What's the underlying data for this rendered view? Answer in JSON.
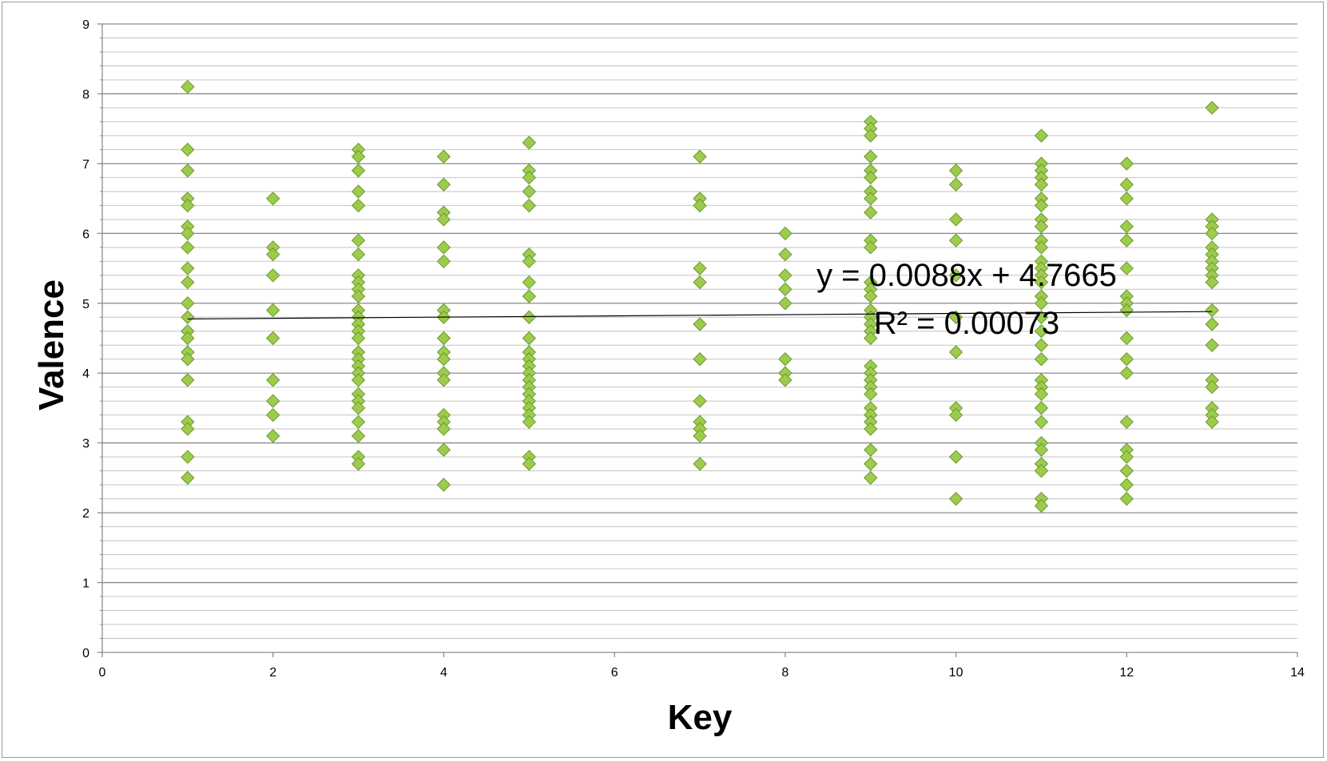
{
  "chart_data": {
    "type": "scatter",
    "title": "",
    "xlabel": "Key",
    "ylabel": "Valence",
    "xlim": [
      0,
      14
    ],
    "ylim": [
      0,
      9
    ],
    "xticks": [
      "0",
      "2",
      "4",
      "6",
      "8",
      "10",
      "12",
      "14"
    ],
    "yticks": [
      "0",
      "1",
      "2",
      "3",
      "4",
      "5",
      "6",
      "7",
      "8",
      "9"
    ],
    "grid": {
      "major_y": true,
      "minor_y": true,
      "x": false
    },
    "marker": {
      "shape": "diamond",
      "fill": "#9CCB4E",
      "edge": "#6E9A2C"
    },
    "trendline": {
      "type": "linear",
      "slope": 0.0088,
      "intercept": 4.7665,
      "x_range": [
        1,
        13
      ],
      "equation": "y = 0.0088x + 4.7665",
      "r_squared": "R² = 0.00073",
      "color": "#000000"
    },
    "series": [
      {
        "values": [
          {
            "x": 1,
            "y": [
              8.1,
              7.2,
              6.9,
              6.5,
              6.4,
              6.1,
              6.0,
              5.8,
              5.5,
              5.3,
              5.0,
              4.8,
              4.6,
              4.5,
              4.3,
              4.2,
              3.9,
              3.3,
              3.2,
              2.8,
              2.5
            ]
          },
          {
            "x": 2,
            "y": [
              6.5,
              5.8,
              5.7,
              5.4,
              4.9,
              4.5,
              3.9,
              3.6,
              3.4,
              3.1
            ]
          },
          {
            "x": 3,
            "y": [
              7.2,
              7.1,
              6.9,
              6.6,
              6.4,
              5.9,
              5.7,
              5.4,
              5.3,
              5.2,
              5.1,
              4.9,
              4.8,
              4.7,
              4.6,
              4.5,
              4.3,
              4.2,
              4.1,
              4.0,
              3.9,
              3.7,
              3.6,
              3.5,
              3.3,
              3.1,
              2.8,
              2.7
            ]
          },
          {
            "x": 4,
            "y": [
              7.1,
              6.7,
              6.3,
              6.2,
              5.8,
              5.6,
              4.9,
              4.8,
              4.5,
              4.3,
              4.2,
              4.0,
              3.9,
              3.4,
              3.3,
              3.2,
              2.9,
              2.4
            ]
          },
          {
            "x": 5,
            "y": [
              7.3,
              6.9,
              6.8,
              6.6,
              6.4,
              5.7,
              5.6,
              5.3,
              5.1,
              4.8,
              4.5,
              4.3,
              4.2,
              4.1,
              4.0,
              3.9,
              3.8,
              3.7,
              3.6,
              3.5,
              3.4,
              3.3,
              2.8,
              2.7
            ]
          },
          {
            "x": 7,
            "y": [
              7.1,
              6.5,
              6.4,
              5.5,
              5.3,
              4.7,
              4.2,
              3.6,
              3.3,
              3.2,
              3.1,
              2.7
            ]
          },
          {
            "x": 8,
            "y": [
              6.0,
              5.7,
              5.4,
              5.2,
              5.0,
              4.2,
              4.0,
              3.9
            ]
          },
          {
            "x": 9,
            "y": [
              7.6,
              7.5,
              7.4,
              7.1,
              6.9,
              6.8,
              6.6,
              6.5,
              6.3,
              5.9,
              5.8,
              5.3,
              5.2,
              5.1,
              4.9,
              4.8,
              4.7,
              4.6,
              4.5,
              4.1,
              4.0,
              3.9,
              3.8,
              3.7,
              3.5,
              3.4,
              3.3,
              3.2,
              2.9,
              2.7,
              2.5
            ]
          },
          {
            "x": 10,
            "y": [
              6.9,
              6.7,
              6.2,
              5.9,
              5.4,
              4.8,
              4.3,
              3.5,
              3.4,
              2.8,
              2.2
            ]
          },
          {
            "x": 11,
            "y": [
              7.4,
              7.0,
              6.9,
              6.8,
              6.7,
              6.5,
              6.4,
              6.2,
              6.1,
              5.9,
              5.8,
              5.6,
              5.5,
              5.4,
              5.3,
              5.1,
              5.0,
              4.8,
              4.6,
              4.4,
              4.2,
              3.9,
              3.8,
              3.7,
              3.5,
              3.3,
              3.0,
              2.9,
              2.7,
              2.6,
              2.2,
              2.1
            ]
          },
          {
            "x": 12,
            "y": [
              7.0,
              6.7,
              6.5,
              6.1,
              5.9,
              5.5,
              5.1,
              5.0,
              4.9,
              4.5,
              4.2,
              4.0,
              3.3,
              2.9,
              2.8,
              2.6,
              2.4,
              2.2
            ]
          },
          {
            "x": 13,
            "y": [
              7.8,
              6.2,
              6.1,
              6.0,
              5.8,
              5.7,
              5.6,
              5.5,
              5.4,
              5.3,
              4.9,
              4.7,
              4.4,
              3.9,
              3.8,
              3.5,
              3.4,
              3.3
            ]
          }
        ]
      }
    ]
  }
}
